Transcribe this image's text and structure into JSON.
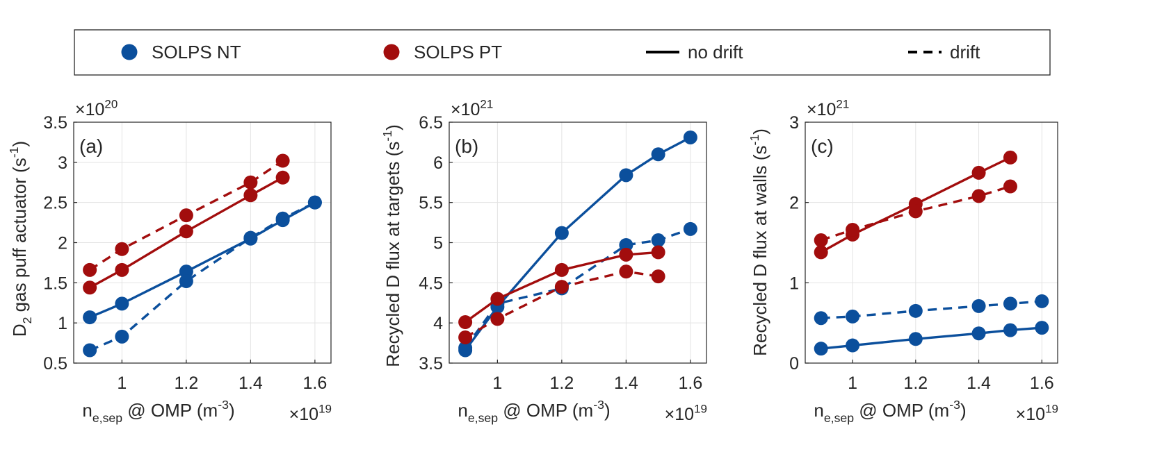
{
  "legend": {
    "placement": "top",
    "entries": [
      {
        "label": "SOLPS NT",
        "kind": "marker",
        "color": "#0b4f9c"
      },
      {
        "label": "SOLPS PT",
        "kind": "marker",
        "color": "#a20d0d"
      },
      {
        "label": "no drift",
        "kind": "line",
        "style": "solid",
        "color": "#000000"
      },
      {
        "label": "drift",
        "kind": "line",
        "style": "dashed",
        "color": "#000000"
      }
    ]
  },
  "colors": {
    "nt": "#0b4f9c",
    "pt": "#a20d0d"
  },
  "chart_data": [
    {
      "type": "line",
      "panel": "(a)",
      "xlabel": "n_e,sep @ OMP (m^-3)",
      "ylabel": "D_2 gas puff actuator (s^-1)",
      "x_multiplier": "×10^19",
      "y_multiplier": "×10^20",
      "xlim": [
        0.85,
        1.65
      ],
      "ylim": [
        0.5,
        3.5
      ],
      "xticks": [
        1,
        1.2,
        1.4,
        1.6
      ],
      "xtick_labels": [
        "1",
        "1.2",
        "1.4",
        "1.6"
      ],
      "yticks": [
        0.5,
        1,
        1.5,
        2,
        2.5,
        3,
        3.5
      ],
      "ytick_labels": [
        "0.5",
        "1",
        "1.5",
        "2",
        "2.5",
        "3",
        "3.5"
      ],
      "grid": true,
      "series": [
        {
          "name": "SOLPS NT",
          "drift": "no drift",
          "color": "nt",
          "dashed": false,
          "x": [
            0.9,
            1.0,
            1.2,
            1.4,
            1.5,
            1.6
          ],
          "y": [
            1.07,
            1.24,
            1.64,
            2.05,
            2.28,
            2.5
          ]
        },
        {
          "name": "SOLPS NT",
          "drift": "drift",
          "color": "nt",
          "dashed": true,
          "x": [
            0.9,
            1.0,
            1.2,
            1.4,
            1.5,
            1.6
          ],
          "y": [
            0.66,
            0.83,
            1.52,
            2.06,
            2.3,
            2.5
          ]
        },
        {
          "name": "SOLPS PT",
          "drift": "no drift",
          "color": "pt",
          "dashed": false,
          "x": [
            0.9,
            1.0,
            1.2,
            1.4,
            1.5
          ],
          "y": [
            1.44,
            1.66,
            2.14,
            2.59,
            2.81
          ]
        },
        {
          "name": "SOLPS PT",
          "drift": "drift",
          "color": "pt",
          "dashed": true,
          "x": [
            0.9,
            1.0,
            1.2,
            1.4,
            1.5
          ],
          "y": [
            1.66,
            1.92,
            2.34,
            2.75,
            3.02
          ]
        }
      ]
    },
    {
      "type": "line",
      "panel": "(b)",
      "xlabel": "n_e,sep @ OMP (m^-3)",
      "ylabel": "Recycled D flux at targets (s^-1)",
      "x_multiplier": "×10^19",
      "y_multiplier": "×10^21",
      "xlim": [
        0.85,
        1.65
      ],
      "ylim": [
        3.5,
        6.5
      ],
      "xticks": [
        1,
        1.2,
        1.4,
        1.6
      ],
      "xtick_labels": [
        "1",
        "1.2",
        "1.4",
        "1.6"
      ],
      "yticks": [
        3.5,
        4,
        4.5,
        5,
        5.5,
        6,
        6.5
      ],
      "ytick_labels": [
        "3.5",
        "4",
        "4.5",
        "5",
        "5.5",
        "6",
        "6.5"
      ],
      "grid": true,
      "series": [
        {
          "name": "SOLPS NT",
          "drift": "no drift",
          "color": "nt",
          "dashed": false,
          "x": [
            0.9,
            1.0,
            1.2,
            1.4,
            1.5,
            1.6
          ],
          "y": [
            3.66,
            4.2,
            5.12,
            5.84,
            6.1,
            6.31
          ]
        },
        {
          "name": "SOLPS NT",
          "drift": "drift",
          "color": "nt",
          "dashed": true,
          "x": [
            0.9,
            1.0,
            1.2,
            1.4,
            1.5,
            1.6
          ],
          "y": [
            3.69,
            4.24,
            4.43,
            4.97,
            5.03,
            5.17
          ]
        },
        {
          "name": "SOLPS PT",
          "drift": "no drift",
          "color": "pt",
          "dashed": false,
          "x": [
            0.9,
            1.0,
            1.2,
            1.4,
            1.5
          ],
          "y": [
            4.01,
            4.3,
            4.66,
            4.85,
            4.88
          ]
        },
        {
          "name": "SOLPS PT",
          "drift": "drift",
          "color": "pt",
          "dashed": true,
          "x": [
            0.9,
            1.0,
            1.2,
            1.4,
            1.5
          ],
          "y": [
            3.82,
            4.05,
            4.45,
            4.64,
            4.58
          ]
        }
      ]
    },
    {
      "type": "line",
      "panel": "(c)",
      "xlabel": "n_e,sep @ OMP (m^-3)",
      "ylabel": "Recycled D flux at walls (s^-1)",
      "x_multiplier": "×10^19",
      "y_multiplier": "×10^21",
      "xlim": [
        0.85,
        1.65
      ],
      "ylim": [
        0,
        3
      ],
      "xticks": [
        1,
        1.2,
        1.4,
        1.6
      ],
      "xtick_labels": [
        "1",
        "1.2",
        "1.4",
        "1.6"
      ],
      "yticks": [
        0,
        1,
        2,
        3
      ],
      "ytick_labels": [
        "0",
        "1",
        "2",
        "3"
      ],
      "grid": true,
      "series": [
        {
          "name": "SOLPS NT",
          "drift": "no drift",
          "color": "nt",
          "dashed": false,
          "x": [
            0.9,
            1.0,
            1.2,
            1.4,
            1.5,
            1.6
          ],
          "y": [
            0.18,
            0.22,
            0.3,
            0.37,
            0.41,
            0.44
          ]
        },
        {
          "name": "SOLPS NT",
          "drift": "drift",
          "color": "nt",
          "dashed": true,
          "x": [
            0.9,
            1.0,
            1.2,
            1.4,
            1.5,
            1.6
          ],
          "y": [
            0.56,
            0.58,
            0.65,
            0.71,
            0.74,
            0.77
          ]
        },
        {
          "name": "SOLPS PT",
          "drift": "no drift",
          "color": "pt",
          "dashed": false,
          "x": [
            0.9,
            1.0,
            1.2,
            1.4,
            1.5
          ],
          "y": [
            1.38,
            1.6,
            1.98,
            2.37,
            2.56
          ]
        },
        {
          "name": "SOLPS PT",
          "drift": "drift",
          "color": "pt",
          "dashed": true,
          "x": [
            0.9,
            1.0,
            1.2,
            1.4,
            1.5
          ],
          "y": [
            1.53,
            1.66,
            1.89,
            2.08,
            2.2
          ]
        }
      ]
    }
  ]
}
